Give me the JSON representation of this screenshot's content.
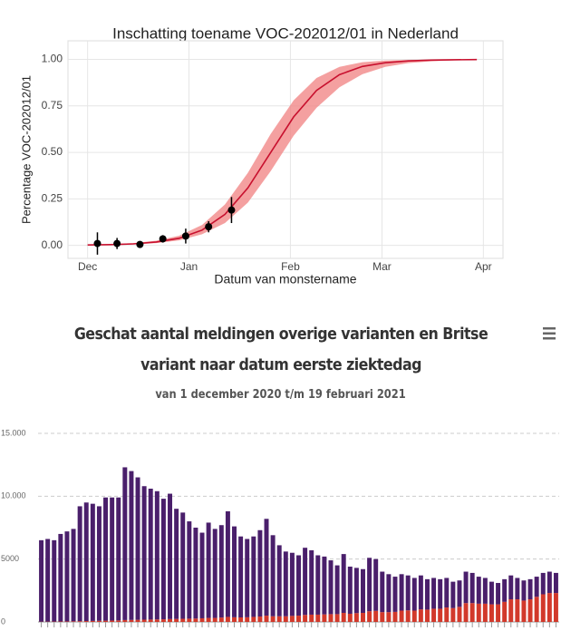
{
  "chart_data": [
    {
      "type": "line",
      "title": "Inschatting toename VOC-202012/01 in Nederland",
      "xlabel": "Datum van monstername",
      "ylabel": "Percentage VOC-202012/01",
      "xlim": [
        -6,
        127
      ],
      "xticks": [
        {
          "value": 0,
          "label": "Dec"
        },
        {
          "value": 31,
          "label": "Jan"
        },
        {
          "value": 62,
          "label": "Feb"
        },
        {
          "value": 90,
          "label": "Mar"
        },
        {
          "value": 121,
          "label": "Apr"
        }
      ],
      "ylim": [
        -0.07,
        1.1
      ],
      "yticks": [
        {
          "value": 0,
          "label": "0.00"
        },
        0.25,
        {
          "value": 0.5,
          "label": "0.50"
        },
        0.75,
        {
          "value": 1,
          "label": "1.00"
        }
      ],
      "grid": true,
      "x": [
        0,
        7,
        14,
        21,
        28,
        35,
        42,
        49,
        56,
        63,
        70,
        77,
        84,
        91,
        98,
        105,
        112,
        119
      ],
      "series": [
        {
          "color": "#c8102e",
          "band_color": "#f08080",
          "values": [
            0.002,
            0.004,
            0.008,
            0.018,
            0.038,
            0.082,
            0.167,
            0.309,
            0.5,
            0.691,
            0.833,
            0.918,
            0.962,
            0.982,
            0.992,
            0.996,
            0.998,
            0.999
          ],
          "lower": [
            0.001,
            0.002,
            0.005,
            0.012,
            0.027,
            0.06,
            0.12,
            0.23,
            0.4,
            0.59,
            0.74,
            0.85,
            0.92,
            0.96,
            0.98,
            0.99,
            0.995,
            0.998
          ],
          "upper": [
            0.003,
            0.006,
            0.012,
            0.025,
            0.052,
            0.11,
            0.22,
            0.39,
            0.6,
            0.78,
            0.9,
            0.96,
            0.985,
            0.994,
            0.997,
            0.999,
            1,
            1
          ]
        }
      ],
      "points": {
        "color": "#000000",
        "x": [
          3,
          9,
          16,
          23,
          30,
          37,
          44
        ],
        "values": [
          0.01,
          0.01,
          0.005,
          0.035,
          0.05,
          0.1,
          0.19
        ],
        "error": [
          0.06,
          0.03,
          0.01,
          0.02,
          0.04,
          0.03,
          0.07
        ]
      }
    },
    {
      "type": "bar",
      "stacked": true,
      "title": "Geschat aantal meldingen overige varianten en Britse variant naar datum eerste ziektedag",
      "subtitle": "van 1 december 2020 t/m 19 februari 2021",
      "ylim": [
        0,
        15000
      ],
      "yticks": [
        0,
        5000,
        {
          "value": 10000,
          "label": "10.000"
        },
        {
          "value": 15000,
          "label": "15.000"
        }
      ],
      "grid": true,
      "categories": [
        null,
        null,
        null,
        null,
        null,
        null,
        null,
        null,
        null,
        null,
        null,
        null,
        null,
        null,
        null,
        null,
        null,
        null,
        null,
        null,
        null,
        null,
        null,
        null,
        null,
        null,
        null,
        null,
        null,
        null,
        null,
        null,
        null,
        null,
        null,
        null,
        null,
        null,
        null,
        null,
        null,
        null,
        null,
        null,
        null,
        null,
        null,
        null,
        null,
        null,
        null,
        null,
        null,
        null,
        null,
        null,
        null,
        null,
        null,
        null,
        null,
        null,
        null,
        null,
        null,
        null,
        null,
        null,
        null,
        null,
        null,
        null,
        null,
        null,
        null,
        null,
        null,
        null,
        null,
        null,
        null
      ],
      "series": [
        {
          "color": "#d2392b",
          "values": [
            20,
            25,
            30,
            35,
            40,
            50,
            60,
            70,
            80,
            90,
            100,
            110,
            120,
            150,
            160,
            170,
            180,
            190,
            200,
            210,
            230,
            240,
            250,
            260,
            270,
            290,
            320,
            320,
            350,
            400,
            370,
            360,
            370,
            400,
            430,
            500,
            450,
            450,
            450,
            480,
            500,
            560,
            580,
            580,
            600,
            620,
            620,
            720,
            650,
            700,
            720,
            850,
            880,
            780,
            780,
            800,
            900,
            920,
            900,
            1000,
            980,
            1050,
            1050,
            1150,
            1100,
            1200,
            1500,
            1500,
            1450,
            1450,
            1400,
            1400,
            1600,
            1800,
            1800,
            1700,
            1800,
            2000,
            2200,
            2300,
            2300
          ]
        },
        {
          "color": "#4a1f6b",
          "values": [
            6480,
            6575,
            6470,
            6965,
            7160,
            7350,
            9140,
            9430,
            9320,
            9110,
            9800,
            9790,
            9780,
            12150,
            11840,
            11330,
            10620,
            10410,
            10200,
            9590,
            9970,
            8760,
            8450,
            7740,
            7230,
            6810,
            7580,
            7080,
            7350,
            8400,
            7230,
            6440,
            6230,
            6400,
            6870,
            7700,
            6450,
            5650,
            5150,
            5020,
            4800,
            5340,
            5120,
            4720,
            4600,
            4280,
            3880,
            4680,
            3750,
            3600,
            3480,
            4250,
            4120,
            3220,
            3020,
            2800,
            2900,
            2780,
            2600,
            2700,
            2420,
            2450,
            2350,
            2350,
            2100,
            2100,
            2500,
            2400,
            2150,
            2050,
            1800,
            1700,
            1800,
            1900,
            1700,
            1600,
            1600,
            1600,
            1700,
            1700,
            1600
          ]
        }
      ]
    }
  ]
}
